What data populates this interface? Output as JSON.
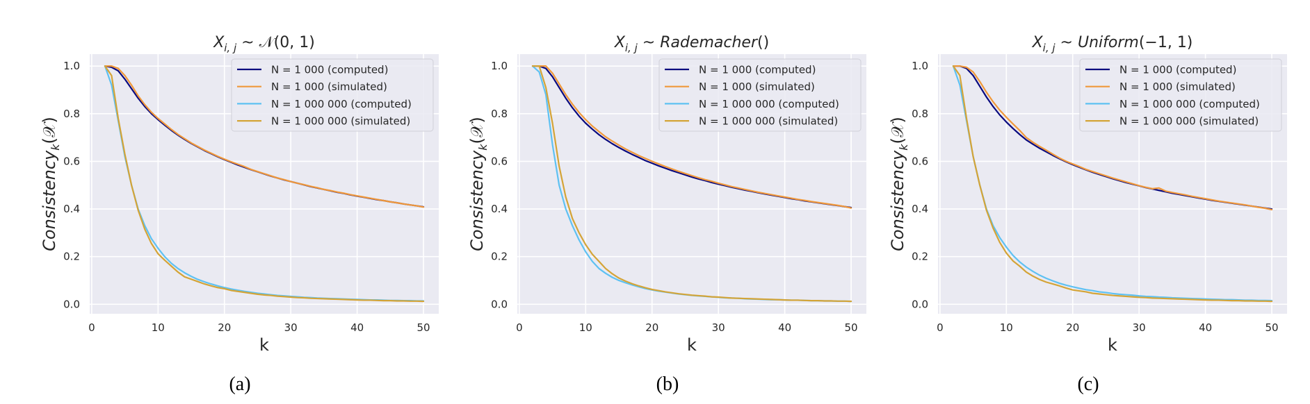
{
  "chart_data": [
    {
      "type": "line",
      "panel_label": "(a)",
      "title": "X_{i,j} ~ N(0, 1)",
      "title_parts": {
        "var": "X",
        "sub": "i, j",
        "dist": "𝒩",
        "args": "(0, 1)",
        "dist_italic": false
      },
      "xlabel": "k",
      "ylabel": "Consistency_k(𝒳)",
      "xlim": [
        -0.3,
        52.3
      ],
      "ylim": [
        -0.04,
        1.05
      ],
      "xticks": [
        0,
        10,
        20,
        30,
        40,
        50
      ],
      "xtick_labels": [
        "0",
        "10",
        "20",
        "30",
        "40",
        "50"
      ],
      "yticks": [
        0.0,
        0.2,
        0.4,
        0.6,
        0.8,
        1.0
      ],
      "ytick_labels": [
        "0.0",
        "0.2",
        "0.4",
        "0.6",
        "0.8",
        "1.0"
      ],
      "grid": true,
      "legend_position": "top-right",
      "x": [
        2,
        3,
        4,
        5,
        6,
        7,
        8,
        9,
        10,
        11,
        12,
        13,
        14,
        15,
        16,
        17,
        18,
        19,
        20,
        21,
        22,
        23,
        24,
        25,
        26,
        27,
        28,
        29,
        30,
        31,
        32,
        33,
        34,
        35,
        36,
        37,
        38,
        39,
        40,
        41,
        42,
        43,
        44,
        45,
        46,
        47,
        48,
        49,
        50
      ],
      "series": [
        {
          "name": "N = 1 000 (computed)",
          "color": "#0a0a7e",
          "values": [
            1.0,
            0.995,
            0.98,
            0.945,
            0.905,
            0.865,
            0.83,
            0.8,
            0.775,
            0.752,
            0.73,
            0.71,
            0.692,
            0.675,
            0.66,
            0.645,
            0.632,
            0.619,
            0.607,
            0.596,
            0.585,
            0.575,
            0.565,
            0.556,
            0.547,
            0.538,
            0.53,
            0.522,
            0.515,
            0.508,
            0.501,
            0.494,
            0.488,
            0.482,
            0.476,
            0.47,
            0.465,
            0.459,
            0.454,
            0.449,
            0.444,
            0.439,
            0.435,
            0.43,
            0.426,
            0.421,
            0.417,
            0.413,
            0.409
          ]
        },
        {
          "name": "N = 1 000 (simulated)",
          "color": "#f0983a",
          "values": [
            1.0,
            1.0,
            0.99,
            0.96,
            0.92,
            0.875,
            0.838,
            0.806,
            0.78,
            0.757,
            0.734,
            0.713,
            0.695,
            0.677,
            0.662,
            0.647,
            0.634,
            0.621,
            0.609,
            0.598,
            0.588,
            0.578,
            0.566,
            0.557,
            0.548,
            0.539,
            0.53,
            0.523,
            0.515,
            0.508,
            0.502,
            0.495,
            0.489,
            0.482,
            0.477,
            0.471,
            0.466,
            0.46,
            0.455,
            0.45,
            0.445,
            0.44,
            0.435,
            0.43,
            0.426,
            0.421,
            0.417,
            0.413,
            0.408
          ]
        },
        {
          "name": "N = 1 000 000 (computed)",
          "color": "#5ec1f2",
          "values": [
            1.0,
            0.92,
            0.77,
            0.62,
            0.5,
            0.4,
            0.33,
            0.275,
            0.235,
            0.2,
            0.172,
            0.15,
            0.132,
            0.117,
            0.104,
            0.094,
            0.085,
            0.077,
            0.07,
            0.064,
            0.059,
            0.054,
            0.05,
            0.046,
            0.043,
            0.04,
            0.037,
            0.035,
            0.033,
            0.031,
            0.029,
            0.028,
            0.026,
            0.025,
            0.024,
            0.023,
            0.022,
            0.021,
            0.02,
            0.019,
            0.018,
            0.018,
            0.017,
            0.016,
            0.016,
            0.015,
            0.015,
            0.014,
            0.014
          ]
        },
        {
          "name": "N = 1 000 000 (simulated)",
          "color": "#d4a437",
          "values": [
            1.0,
            0.96,
            0.78,
            0.63,
            0.5,
            0.395,
            0.315,
            0.255,
            0.212,
            0.185,
            0.16,
            0.135,
            0.115,
            0.105,
            0.095,
            0.085,
            0.077,
            0.07,
            0.065,
            0.058,
            0.054,
            0.05,
            0.046,
            0.042,
            0.039,
            0.037,
            0.034,
            0.032,
            0.03,
            0.028,
            0.027,
            0.025,
            0.024,
            0.023,
            0.022,
            0.021,
            0.02,
            0.019,
            0.018,
            0.017,
            0.017,
            0.016,
            0.015,
            0.015,
            0.014,
            0.014,
            0.013,
            0.013,
            0.012
          ]
        }
      ]
    },
    {
      "type": "line",
      "panel_label": "(b)",
      "title": "X_{i,j} ~ Rademacher()",
      "title_parts": {
        "var": "X",
        "sub": "i, j",
        "dist": "Rademacher",
        "args": "()",
        "dist_italic": true
      },
      "xlabel": "k",
      "ylabel": "Consistency_k(𝒳)",
      "xlim": [
        -0.3,
        52.3
      ],
      "ylim": [
        -0.04,
        1.05
      ],
      "xticks": [
        0,
        10,
        20,
        30,
        40,
        50
      ],
      "xtick_labels": [
        "0",
        "10",
        "20",
        "30",
        "40",
        "50"
      ],
      "yticks": [
        0.0,
        0.2,
        0.4,
        0.6,
        0.8,
        1.0
      ],
      "ytick_labels": [
        "0.0",
        "0.2",
        "0.4",
        "0.6",
        "0.8",
        "1.0"
      ],
      "grid": true,
      "legend_position": "top-right",
      "x": [
        2,
        3,
        4,
        5,
        6,
        7,
        8,
        9,
        10,
        11,
        12,
        13,
        14,
        15,
        16,
        17,
        18,
        19,
        20,
        21,
        22,
        23,
        24,
        25,
        26,
        27,
        28,
        29,
        30,
        31,
        32,
        33,
        34,
        35,
        36,
        37,
        38,
        39,
        40,
        41,
        42,
        43,
        44,
        45,
        46,
        47,
        48,
        49,
        50
      ],
      "series": [
        {
          "name": "N = 1 000 (computed)",
          "color": "#0a0a7e",
          "values": [
            1.0,
            1.0,
            0.99,
            0.955,
            0.91,
            0.865,
            0.825,
            0.79,
            0.76,
            0.735,
            0.712,
            0.692,
            0.674,
            0.658,
            0.643,
            0.629,
            0.616,
            0.603,
            0.592,
            0.581,
            0.571,
            0.561,
            0.552,
            0.543,
            0.534,
            0.526,
            0.519,
            0.511,
            0.504,
            0.498,
            0.491,
            0.485,
            0.479,
            0.474,
            0.468,
            0.463,
            0.458,
            0.453,
            0.448,
            0.443,
            0.439,
            0.434,
            0.43,
            0.426,
            0.422,
            0.418,
            0.414,
            0.41,
            0.406
          ]
        },
        {
          "name": "N = 1 000 (simulated)",
          "color": "#f0983a",
          "values": [
            1.0,
            1.0,
            1.0,
            0.97,
            0.925,
            0.88,
            0.84,
            0.805,
            0.775,
            0.748,
            0.725,
            0.703,
            0.685,
            0.668,
            0.652,
            0.638,
            0.624,
            0.612,
            0.6,
            0.589,
            0.578,
            0.568,
            0.558,
            0.549,
            0.54,
            0.531,
            0.523,
            0.516,
            0.508,
            0.501,
            0.494,
            0.488,
            0.482,
            0.476,
            0.47,
            0.465,
            0.46,
            0.455,
            0.45,
            0.445,
            0.44,
            0.436,
            0.431,
            0.427,
            0.423,
            0.419,
            0.415,
            0.41,
            0.404
          ]
        },
        {
          "name": "N = 1 000 000 (computed)",
          "color": "#5ec1f2",
          "values": [
            1.0,
            0.975,
            0.88,
            0.67,
            0.5,
            0.4,
            0.33,
            0.27,
            0.22,
            0.18,
            0.15,
            0.13,
            0.113,
            0.1,
            0.09,
            0.081,
            0.073,
            0.066,
            0.06,
            0.055,
            0.051,
            0.047,
            0.043,
            0.04,
            0.037,
            0.035,
            0.033,
            0.031,
            0.029,
            0.027,
            0.026,
            0.025,
            0.023,
            0.022,
            0.021,
            0.02,
            0.019,
            0.019,
            0.018,
            0.017,
            0.017,
            0.016,
            0.015,
            0.015,
            0.014,
            0.014,
            0.013,
            0.013,
            0.012
          ]
        },
        {
          "name": "N = 1 000 000 (simulated)",
          "color": "#d4a437",
          "values": [
            1.0,
            1.0,
            0.91,
            0.76,
            0.58,
            0.45,
            0.36,
            0.3,
            0.25,
            0.21,
            0.18,
            0.15,
            0.128,
            0.11,
            0.097,
            0.086,
            0.077,
            0.069,
            0.062,
            0.057,
            0.052,
            0.048,
            0.044,
            0.041,
            0.038,
            0.036,
            0.034,
            0.031,
            0.03,
            0.028,
            0.026,
            0.025,
            0.024,
            0.023,
            0.022,
            0.021,
            0.02,
            0.019,
            0.018,
            0.017,
            0.017,
            0.016,
            0.015,
            0.015,
            0.014,
            0.014,
            0.013,
            0.013,
            0.012
          ]
        }
      ]
    },
    {
      "type": "line",
      "panel_label": "(c)",
      "title": "X_{i,j} ~ Uniform(−1, 1)",
      "title_parts": {
        "var": "X",
        "sub": "i, j",
        "dist": "Uniform",
        "args": "(−1, 1)",
        "dist_italic": true
      },
      "xlabel": "k",
      "ylabel": "Consistency_k(𝒳)",
      "xlim": [
        -0.3,
        52.3
      ],
      "ylim": [
        -0.04,
        1.05
      ],
      "xticks": [
        0,
        10,
        20,
        30,
        40,
        50
      ],
      "xtick_labels": [
        "0",
        "10",
        "20",
        "30",
        "40",
        "50"
      ],
      "yticks": [
        0.0,
        0.2,
        0.4,
        0.6,
        0.8,
        1.0
      ],
      "ytick_labels": [
        "0.0",
        "0.2",
        "0.4",
        "0.6",
        "0.8",
        "1.0"
      ],
      "grid": true,
      "legend_position": "top-right",
      "x": [
        2,
        3,
        4,
        5,
        6,
        7,
        8,
        9,
        10,
        11,
        12,
        13,
        14,
        15,
        16,
        17,
        18,
        19,
        20,
        21,
        22,
        23,
        24,
        25,
        26,
        27,
        28,
        29,
        30,
        31,
        32,
        33,
        34,
        35,
        36,
        37,
        38,
        39,
        40,
        41,
        42,
        43,
        44,
        45,
        46,
        47,
        48,
        49,
        50
      ],
      "series": [
        {
          "name": "N = 1 000 (computed)",
          "color": "#0a0a7e",
          "values": [
            1.0,
            1.0,
            0.99,
            0.96,
            0.915,
            0.87,
            0.83,
            0.795,
            0.765,
            0.738,
            0.713,
            0.69,
            0.672,
            0.655,
            0.64,
            0.625,
            0.611,
            0.598,
            0.586,
            0.575,
            0.564,
            0.554,
            0.545,
            0.536,
            0.527,
            0.519,
            0.511,
            0.504,
            0.497,
            0.49,
            0.484,
            0.478,
            0.472,
            0.466,
            0.461,
            0.456,
            0.451,
            0.446,
            0.441,
            0.436,
            0.432,
            0.428,
            0.424,
            0.42,
            0.416,
            0.412,
            0.408,
            0.404,
            0.4
          ]
        },
        {
          "name": "N = 1 000 (simulated)",
          "color": "#f0983a",
          "values": [
            1.0,
            1.0,
            0.995,
            0.975,
            0.935,
            0.89,
            0.85,
            0.815,
            0.785,
            0.757,
            0.73,
            0.7,
            0.68,
            0.663,
            0.647,
            0.63,
            0.614,
            0.6,
            0.589,
            0.578,
            0.566,
            0.557,
            0.548,
            0.539,
            0.53,
            0.522,
            0.514,
            0.506,
            0.498,
            0.491,
            0.485,
            0.488,
            0.475,
            0.469,
            0.464,
            0.459,
            0.453,
            0.448,
            0.443,
            0.438,
            0.433,
            0.429,
            0.425,
            0.421,
            0.417,
            0.412,
            0.407,
            0.403,
            0.397
          ]
        },
        {
          "name": "N = 1 000 000 (computed)",
          "color": "#5ec1f2",
          "values": [
            1.0,
            0.92,
            0.77,
            0.62,
            0.5,
            0.4,
            0.33,
            0.28,
            0.24,
            0.205,
            0.178,
            0.156,
            0.138,
            0.122,
            0.109,
            0.098,
            0.088,
            0.08,
            0.073,
            0.067,
            0.061,
            0.057,
            0.052,
            0.049,
            0.045,
            0.042,
            0.04,
            0.038,
            0.035,
            0.033,
            0.032,
            0.03,
            0.029,
            0.027,
            0.026,
            0.025,
            0.024,
            0.023,
            0.022,
            0.021,
            0.02,
            0.019,
            0.019,
            0.018,
            0.017,
            0.017,
            0.016,
            0.016,
            0.015
          ]
        },
        {
          "name": "N = 1 000 000 (simulated)",
          "color": "#d4a437",
          "values": [
            1.0,
            0.96,
            0.78,
            0.62,
            0.5,
            0.395,
            0.32,
            0.26,
            0.215,
            0.182,
            0.16,
            0.135,
            0.118,
            0.104,
            0.093,
            0.085,
            0.077,
            0.068,
            0.06,
            0.056,
            0.052,
            0.046,
            0.043,
            0.04,
            0.037,
            0.035,
            0.033,
            0.031,
            0.029,
            0.028,
            0.026,
            0.025,
            0.024,
            0.023,
            0.022,
            0.021,
            0.02,
            0.019,
            0.018,
            0.017,
            0.017,
            0.016,
            0.015,
            0.015,
            0.014,
            0.014,
            0.013,
            0.013,
            0.012
          ]
        }
      ]
    }
  ],
  "style": {
    "axes_bg": "#eaeaf2",
    "grid_color": "#ffffff",
    "text_color": "#262626",
    "legend_bg": "#eaeaf2",
    "legend_border": "#d0d0d8"
  }
}
